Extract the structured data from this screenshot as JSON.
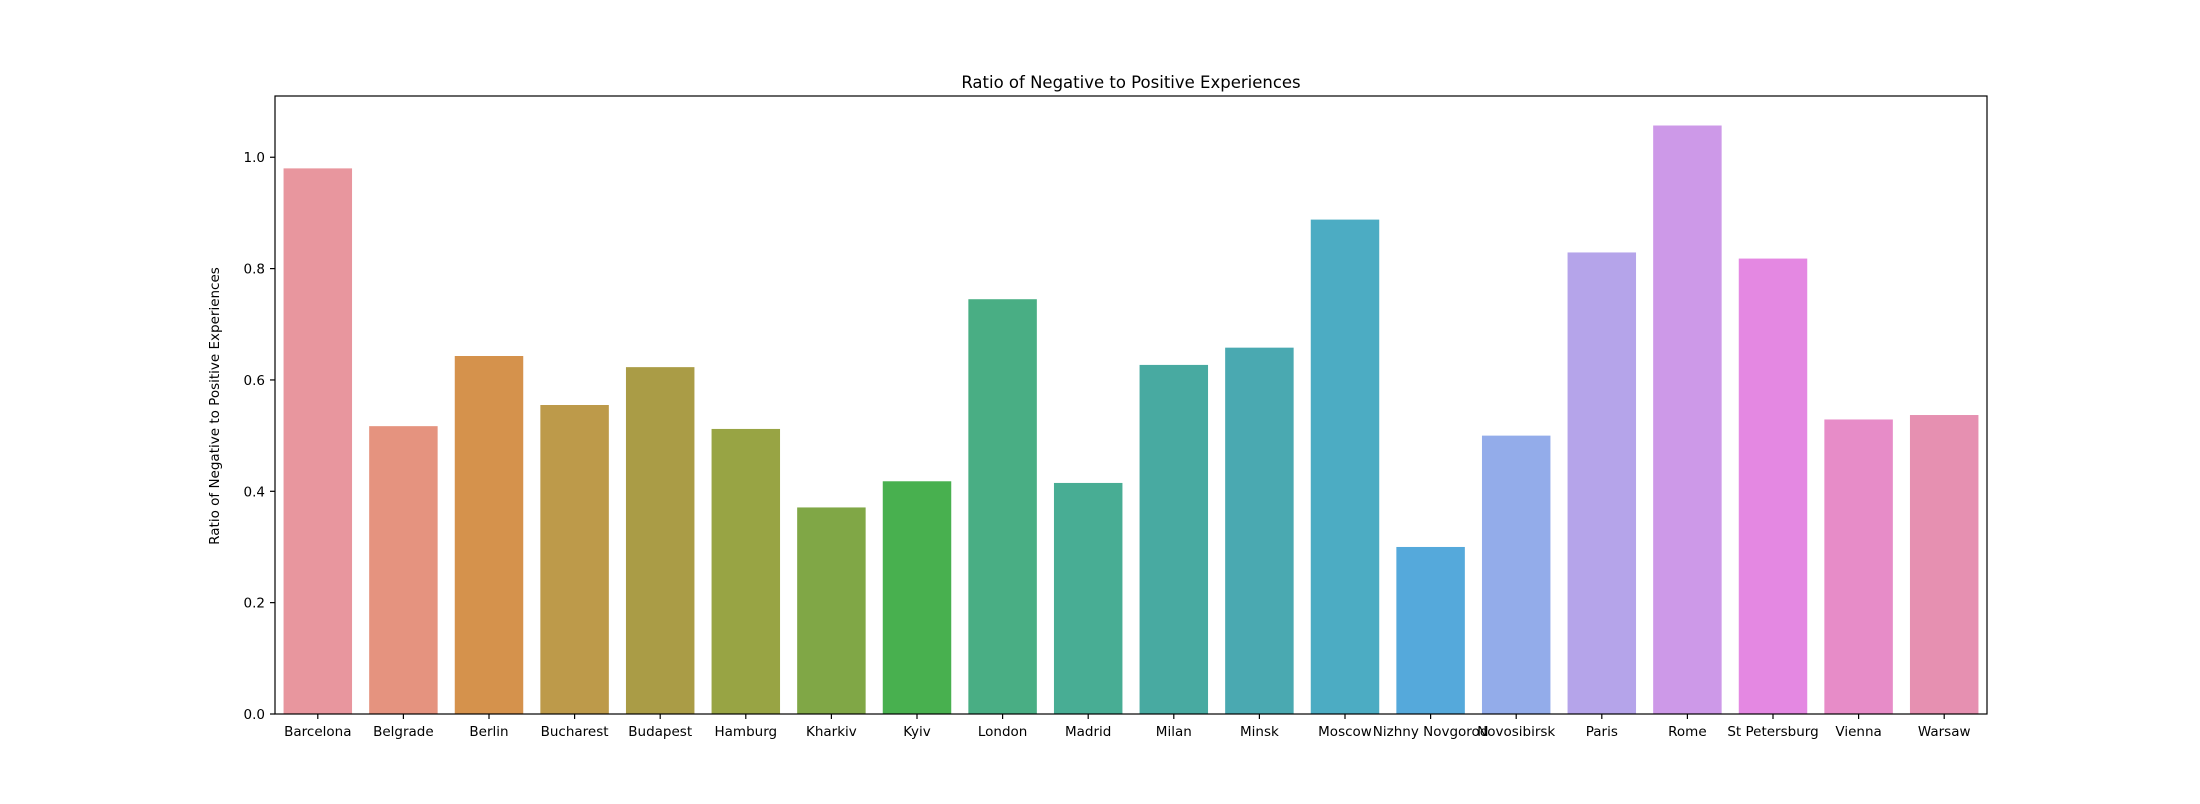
{
  "chart_data": {
    "type": "bar",
    "title": "Ratio of Negative to Positive Experiences",
    "xlabel": "",
    "ylabel": "Ratio of Negative to Positive Experiences",
    "categories": [
      "Barcelona",
      "Belgrade",
      "Berlin",
      "Bucharest",
      "Budapest",
      "Hamburg",
      "Kharkiv",
      "Kyiv",
      "London",
      "Madrid",
      "Milan",
      "Minsk",
      "Moscow",
      "Nizhny Novgorod",
      "Novosibirsk",
      "Paris",
      "Rome",
      "St Petersburg",
      "Vienna",
      "Warsaw"
    ],
    "values": [
      0.98,
      0.517,
      0.643,
      0.555,
      0.623,
      0.512,
      0.371,
      0.418,
      0.745,
      0.415,
      0.627,
      0.658,
      0.888,
      0.3,
      0.5,
      0.829,
      1.057,
      0.818,
      0.529,
      0.537
    ],
    "colors": [
      "#e8969e",
      "#e5937f",
      "#d5924c",
      "#bd9a4a",
      "#aa9c46",
      "#98a444",
      "#80a746",
      "#48b04f",
      "#49ae84",
      "#48ad94",
      "#48aaa1",
      "#4aa9b1",
      "#4cacc3",
      "#55a9db",
      "#93acea",
      "#b5a4ea",
      "#cd99e8",
      "#e488e2",
      "#e78cc8",
      "#e690b1"
    ],
    "ylim": [
      0,
      1.11
    ],
    "yticks": [
      "0.0",
      "0.2",
      "0.4",
      "0.6",
      "0.8",
      "1.0"
    ],
    "grid": false,
    "legend": "none"
  }
}
